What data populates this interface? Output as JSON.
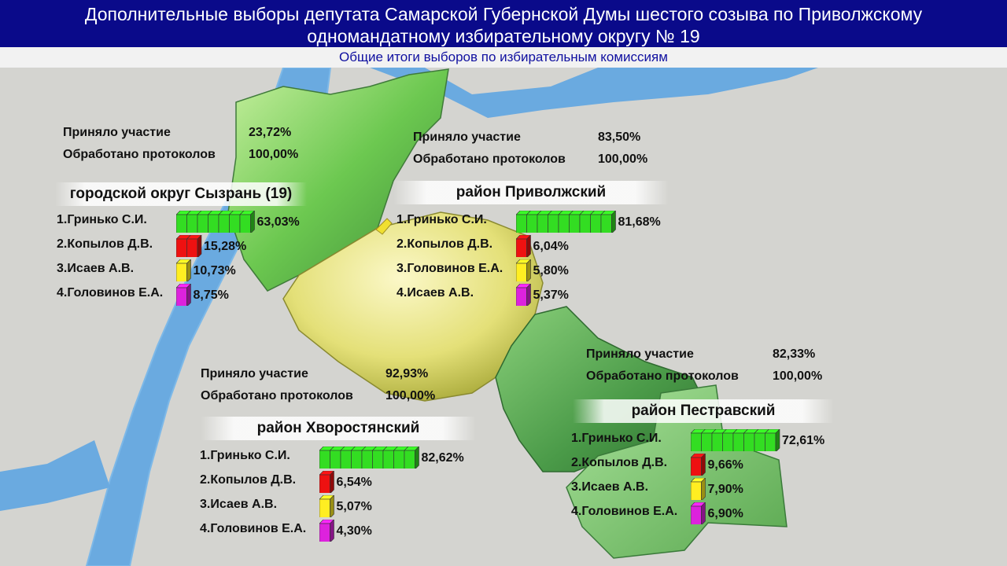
{
  "header": {
    "title_line1": "Дополнительные выборы депутата Самарской Губернской Думы шестого созыва по Приволжскому",
    "title_line2": "одномандатному избирательному округу № 19",
    "subtitle": "Общие итоги выборов по избирательным комиссиям"
  },
  "labels": {
    "participation": "Приняло участие",
    "protocols": "Обработано протоколов"
  },
  "colors": {
    "header_bg": "#0a0a8a",
    "green": "#33dd22",
    "red": "#ee1111",
    "yellow": "#ffee22",
    "magenta": "#dd22dd"
  },
  "chart_data": [
    {
      "type": "bar",
      "title": "городской округ Сызрань (19)",
      "participation": "23,72%",
      "protocols": "100,00%",
      "categories": [
        "1.Гринько С.И.",
        "2.Копылов Д.В.",
        "3.Исаев А.В.",
        "4.Головинов Е.А."
      ],
      "values": [
        63.03,
        15.28,
        10.73,
        8.75
      ],
      "value_labels": [
        "63,03%",
        "15,28%",
        "10,73%",
        "8,75%"
      ],
      "colors": [
        "green",
        "red",
        "yellow",
        "magenta"
      ]
    },
    {
      "type": "bar",
      "title": "район Приволжский",
      "participation": "83,50%",
      "protocols": "100,00%",
      "categories": [
        "1.Гринько С.И.",
        "2.Копылов Д.В.",
        "3.Головинов Е.А.",
        "4.Исаев А.В."
      ],
      "values": [
        81.68,
        6.04,
        5.8,
        5.37
      ],
      "value_labels": [
        "81,68%",
        "6,04%",
        "5,80%",
        "5,37%"
      ],
      "colors": [
        "green",
        "red",
        "yellow",
        "magenta"
      ]
    },
    {
      "type": "bar",
      "title": "район Хворостянский",
      "participation": "92,93%",
      "protocols": "100,00%",
      "categories": [
        "1.Гринько С.И.",
        "2.Копылов Д.В.",
        "3.Исаев А.В.",
        "4.Головинов Е.А."
      ],
      "values": [
        82.62,
        6.54,
        5.07,
        4.3
      ],
      "value_labels": [
        "82,62%",
        "6,54%",
        "5,07%",
        "4,30%"
      ],
      "colors": [
        "green",
        "red",
        "yellow",
        "magenta"
      ]
    },
    {
      "type": "bar",
      "title": "район Пестравский",
      "participation": "82,33%",
      "protocols": "100,00%",
      "categories": [
        "1.Гринько С.И.",
        "2.Копылов Д.В.",
        "3.Исаев А.В.",
        "4.Головинов Е.А."
      ],
      "values": [
        72.61,
        9.66,
        7.9,
        6.9
      ],
      "value_labels": [
        "72,61%",
        "9,66%",
        "7,90%",
        "6,90%"
      ],
      "colors": [
        "green",
        "red",
        "yellow",
        "magenta"
      ]
    }
  ]
}
